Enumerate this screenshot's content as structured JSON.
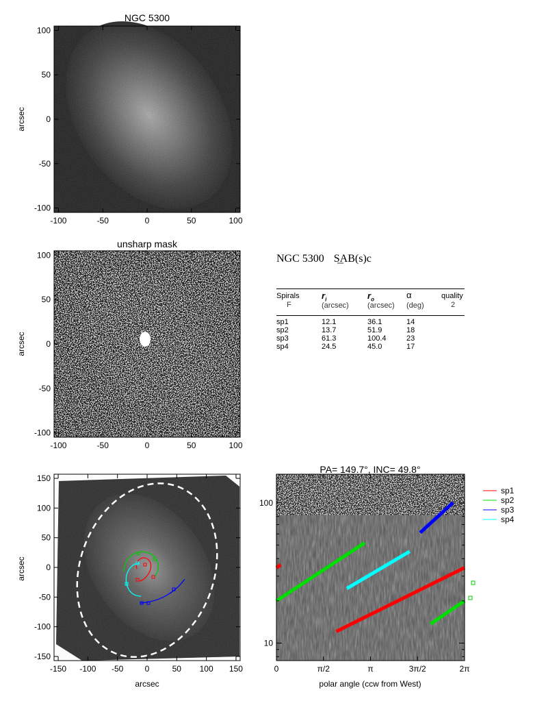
{
  "galaxy": "NGC 5300",
  "morphology": "SAB(s)c",
  "panels": {
    "top": {
      "title": "NGC 5300",
      "ylabel": "arcsec",
      "xticks": [
        "-100",
        "-50",
        "0",
        "50",
        "100"
      ],
      "yticks": [
        "100",
        "50",
        "0",
        "-50",
        "-100"
      ]
    },
    "middle": {
      "title": "unsharp mask",
      "ylabel": "arcsec",
      "xticks": [
        "-100",
        "-50",
        "0",
        "50",
        "100"
      ],
      "yticks": [
        "100",
        "50",
        "0",
        "-50",
        "-100"
      ]
    },
    "bottom_left": {
      "xlabel": "arcsec",
      "ylabel": "arcsec",
      "xticks": [
        "-150",
        "-100",
        "-50",
        "0",
        "50",
        "100",
        "150"
      ],
      "yticks": [
        "150",
        "100",
        "50",
        "0",
        "-50",
        "-100",
        "-150"
      ]
    },
    "bottom_right": {
      "title": "PA= 149.7°, INC=  49.8°",
      "xlabel": "polar angle (ccw from West)",
      "xticks": [
        "0",
        "π/2",
        "π",
        "3π/2",
        "2π"
      ],
      "yticks": [
        "100",
        "10"
      ]
    }
  },
  "table": {
    "headers": {
      "spirals": "Spirals",
      "F": "F",
      "ri": "r",
      "ri_sub": "i",
      "ri_unit": "(arcsec)",
      "ro": "r",
      "ro_sub": "o",
      "ro_unit": "(arcsec)",
      "alpha": "α",
      "alpha_unit": "(deg)",
      "quality": "quality",
      "quality_val": "2"
    },
    "rows": [
      {
        "name": "sp1",
        "ri": "12.1",
        "ro": "36.1",
        "alpha": "14"
      },
      {
        "name": "sp2",
        "ri": "13.7",
        "ro": "51.9",
        "alpha": "18"
      },
      {
        "name": "sp3",
        "ri": "61.3",
        "ro": "100.4",
        "alpha": "23"
      },
      {
        "name": "sp4",
        "ri": "24.5",
        "ro": "45.0",
        "alpha": "17"
      }
    ]
  },
  "legend": [
    {
      "name": "sp1",
      "color": "#ff0000"
    },
    {
      "name": "sp2",
      "color": "#00dd00"
    },
    {
      "name": "sp3",
      "color": "#0000ff"
    },
    {
      "name": "sp4",
      "color": "#00ffff"
    }
  ],
  "chart_data": {
    "type": "line",
    "title": "PA= 149.7°, INC=  49.8°",
    "xlabel": "polar angle (ccw from West)",
    "ylabel": "",
    "xlim": [
      0,
      6.2832
    ],
    "ylim": [
      7.5,
      160
    ],
    "yscale": "log",
    "series": [
      {
        "name": "sp1",
        "color": "#ff0000",
        "segments": [
          [
            [
              0,
              34.5
            ],
            [
              0.15,
              36.1
            ]
          ],
          [
            [
              2.0,
              12.1
            ],
            [
              6.2832,
              34.5
            ]
          ]
        ]
      },
      {
        "name": "sp2",
        "color": "#00dd00",
        "segments": [
          [
            [
              0,
              20.0
            ],
            [
              2.95,
              51.9
            ]
          ],
          [
            [
              5.15,
              13.7
            ],
            [
              6.2832,
              20.0
            ]
          ]
        ]
      },
      {
        "name": "sp3",
        "color": "#0000ff",
        "segments": [
          [
            [
              4.8,
              61.3
            ],
            [
              5.9,
              100.4
            ]
          ]
        ]
      },
      {
        "name": "sp4",
        "color": "#00ffff",
        "segments": [
          [
            [
              2.35,
              24.5
            ],
            [
              4.45,
              45.0
            ]
          ]
        ]
      }
    ]
  }
}
